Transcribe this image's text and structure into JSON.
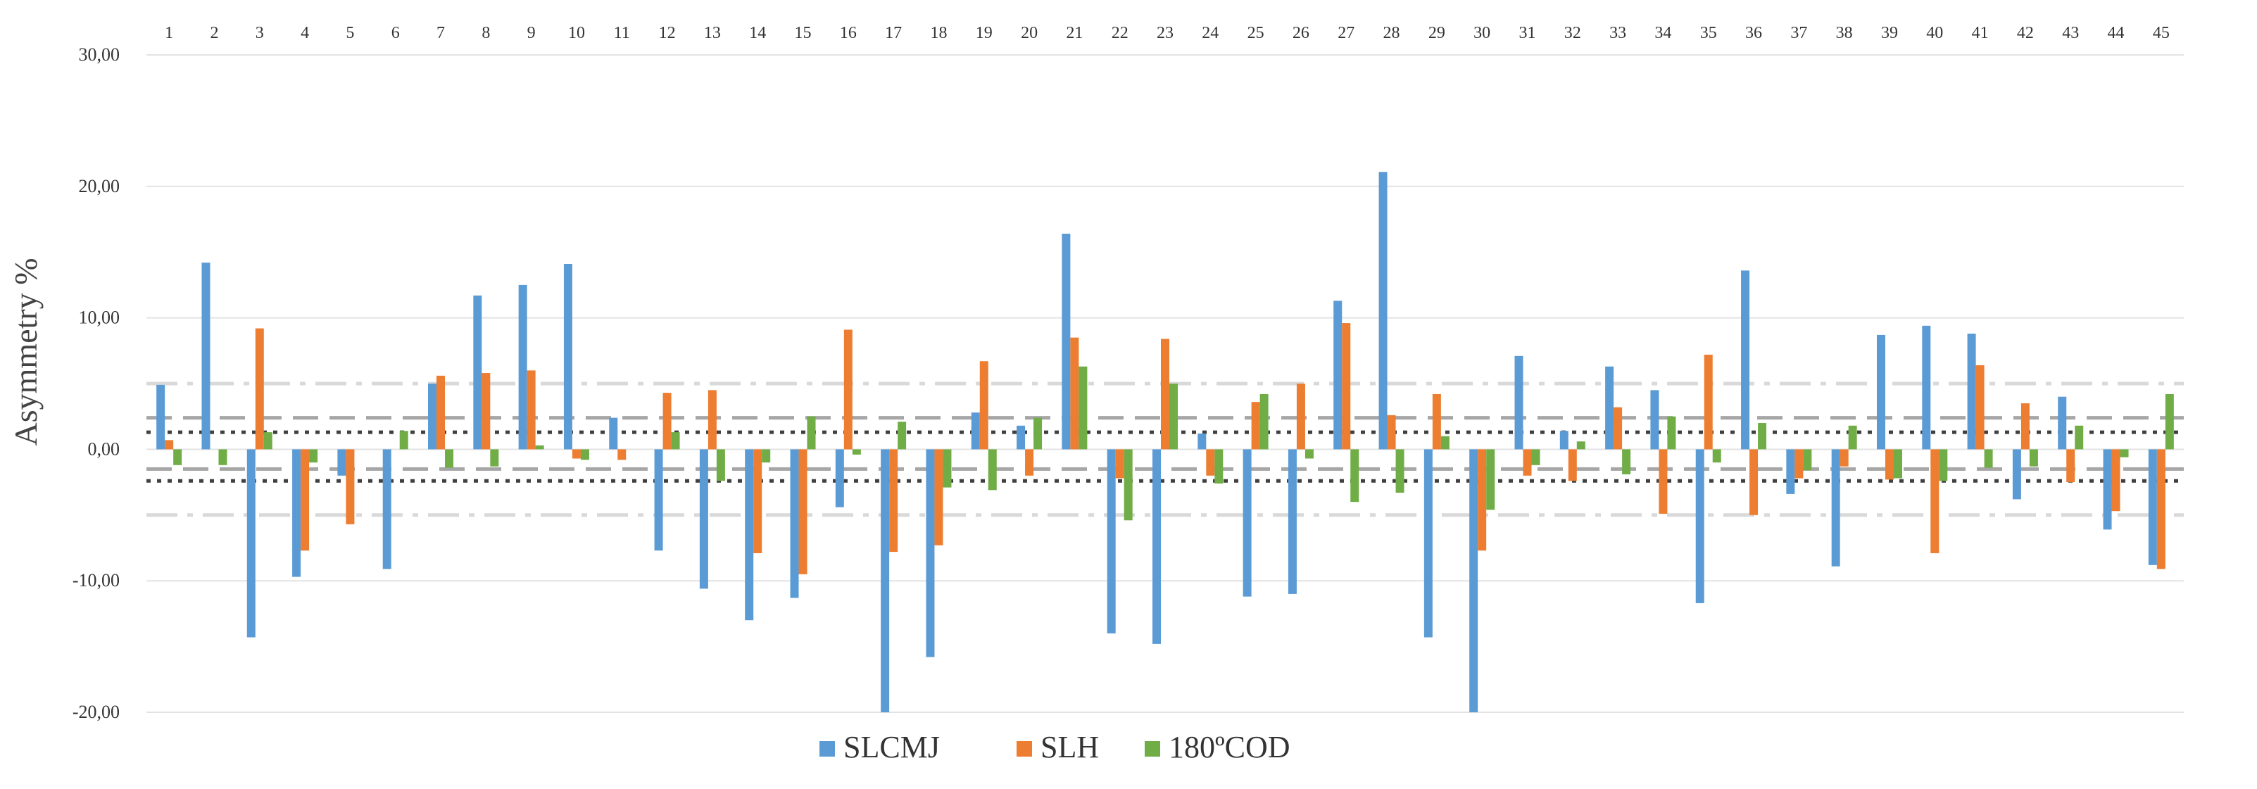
{
  "chart_data": {
    "type": "bar",
    "title": "",
    "xlabel": "",
    "ylabel": "Asymmetry %",
    "ylim": [
      -20,
      30
    ],
    "yticks": [
      "-20,00",
      "-10,00",
      "0,00",
      "10,00",
      "20,00",
      "30,00"
    ],
    "ytick_values": [
      -20,
      -10,
      0,
      10,
      20,
      30
    ],
    "grid": true,
    "legend_position": "bottom",
    "categories": [
      "1",
      "2",
      "3",
      "4",
      "5",
      "6",
      "7",
      "8",
      "9",
      "10",
      "11",
      "12",
      "13",
      "14",
      "15",
      "16",
      "17",
      "18",
      "19",
      "20",
      "21",
      "22",
      "23",
      "24",
      "25",
      "26",
      "27",
      "28",
      "29",
      "30",
      "31",
      "32",
      "33",
      "34",
      "35",
      "36",
      "37",
      "38",
      "39",
      "40",
      "41",
      "42",
      "43",
      "44",
      "45"
    ],
    "series": [
      {
        "name": "SLCMJ",
        "color": "#5B9BD5",
        "values": [
          4.9,
          14.2,
          -14.3,
          -9.7,
          -2.0,
          -9.1,
          5.0,
          11.7,
          12.5,
          14.1,
          2.4,
          -7.7,
          -10.6,
          -13.0,
          -11.3,
          -4.4,
          -20.0,
          -15.8,
          2.8,
          1.8,
          16.4,
          -14.0,
          -14.8,
          1.2,
          -11.2,
          -11.0,
          11.3,
          21.1,
          -14.3,
          -20.0,
          7.1,
          1.4,
          6.3,
          4.5,
          -11.7,
          13.6,
          -3.4,
          -8.9,
          8.7,
          9.4,
          8.8,
          -3.8,
          4.0,
          -6.1,
          -8.8
        ]
      },
      {
        "name": "SLH",
        "color": "#ED7D31",
        "values": [
          0.7,
          0.0,
          9.2,
          -7.7,
          -5.7,
          0.0,
          5.6,
          5.8,
          6.0,
          -0.7,
          -0.8,
          4.3,
          4.5,
          -7.9,
          -9.5,
          9.1,
          -7.8,
          -7.3,
          6.7,
          -2.0,
          8.5,
          -2.2,
          8.4,
          -2.0,
          3.6,
          5.0,
          9.6,
          2.6,
          4.2,
          -7.7,
          -2.0,
          -2.4,
          3.2,
          -4.9,
          7.2,
          -5.0,
          -2.2,
          -1.3,
          -2.3,
          -7.9,
          6.4,
          3.5,
          -2.5,
          -4.7,
          -9.1
        ]
      },
      {
        "name": "180ºCOD",
        "color": "#70AD47",
        "values": [
          -1.2,
          -1.2,
          1.3,
          -1.0,
          0.0,
          1.4,
          -1.4,
          -1.3,
          0.3,
          -0.8,
          0.0,
          1.3,
          -2.4,
          -1.0,
          2.5,
          -0.4,
          2.1,
          -2.9,
          -3.1,
          2.4,
          6.3,
          -5.4,
          5.0,
          -2.6,
          4.2,
          -0.7,
          -4.0,
          -3.3,
          1.0,
          -4.6,
          -1.2,
          0.6,
          -1.9,
          2.5,
          -1.0,
          2.0,
          -1.6,
          1.8,
          -2.2,
          -2.4,
          -1.4,
          -1.3,
          1.8,
          -0.6,
          4.2
        ]
      }
    ],
    "reference_lines": [
      {
        "value": 5.0,
        "style": "dash-dot",
        "color": "#D9D9D9"
      },
      {
        "value": -5.0,
        "style": "dash-dot",
        "color": "#D9D9D9"
      },
      {
        "value": 2.4,
        "style": "long-dash",
        "color": "#A6A6A6"
      },
      {
        "value": -1.5,
        "style": "long-dash",
        "color": "#A6A6A6"
      },
      {
        "value": 1.3,
        "style": "dotted",
        "color": "#404040"
      },
      {
        "value": -2.4,
        "style": "dotted",
        "color": "#404040"
      }
    ]
  }
}
